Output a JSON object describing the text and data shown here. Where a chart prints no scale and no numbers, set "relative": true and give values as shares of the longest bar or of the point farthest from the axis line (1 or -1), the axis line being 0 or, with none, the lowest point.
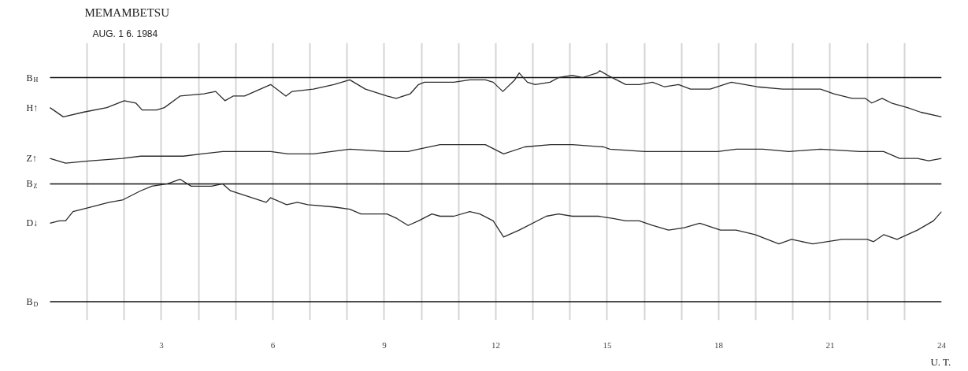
{
  "chart_data": {
    "type": "line",
    "title": "MEMAMBETSU",
    "subtitle": "AUG. 1 6. 1984",
    "xlabel": "U. T.",
    "relative": true,
    "xlim": [
      0,
      24
    ],
    "xticks": [
      {
        "value": 1,
        "label": null
      },
      {
        "value": 2,
        "label": null
      },
      3,
      {
        "value": 4,
        "label": null
      },
      {
        "value": 5,
        "label": null
      },
      6,
      {
        "value": 7,
        "label": null
      },
      {
        "value": 8,
        "label": null
      },
      9,
      {
        "value": 10,
        "label": null
      },
      {
        "value": 11,
        "label": null
      },
      12,
      {
        "value": 13,
        "label": null
      },
      {
        "value": 14,
        "label": null
      },
      15,
      {
        "value": 16,
        "label": null
      },
      {
        "value": 17,
        "label": null
      },
      18,
      {
        "value": 19,
        "label": null
      },
      {
        "value": 20,
        "label": null
      },
      21,
      {
        "value": 22,
        "label": null
      },
      {
        "value": 23,
        "label": null
      },
      24
    ],
    "grid": "x",
    "ref_lines": [
      {
        "axis": "y",
        "value": 0.97,
        "label": "B$_{H}$",
        "color": "#111111"
      },
      {
        "axis": "y",
        "value": 0.51,
        "label": "B$_{Z}$",
        "color": "#111111"
      },
      {
        "axis": "y",
        "value": 0,
        "label": "B$_{D}$",
        "color": "#111111"
      }
    ],
    "series": [
      {
        "name": "H↑",
        "color": "#2b2b2b",
        "x": [
          0,
          0.36,
          0.89,
          1.53,
          2.0,
          2.31,
          2.48,
          2.87,
          3.08,
          3.5,
          4.14,
          4.46,
          4.71,
          4.93,
          5.24,
          5.94,
          6.35,
          6.52,
          7.09,
          7.64,
          8.07,
          8.49,
          9.07,
          9.32,
          9.7,
          9.92,
          10.08,
          10.5,
          10.87,
          11.3,
          11.72,
          11.93,
          12.19,
          12.51,
          12.63,
          12.85,
          13.06,
          13.46,
          13.69,
          14.06,
          14.33,
          14.73,
          14.8,
          15.01,
          15.5,
          15.86,
          16.22,
          16.54,
          16.92,
          17.24,
          17.77,
          18.34,
          19.04,
          19.72,
          20.04,
          20.74,
          21.1,
          21.59,
          21.95,
          22.12,
          22.4,
          22.65,
          23.08,
          23.44,
          24
        ],
        "values": [
          0.84,
          0.8,
          0.82,
          0.84,
          0.87,
          0.86,
          0.83,
          0.83,
          0.84,
          0.89,
          0.9,
          0.91,
          0.87,
          0.89,
          0.89,
          0.94,
          0.89,
          0.91,
          0.92,
          0.94,
          0.96,
          0.92,
          0.89,
          0.88,
          0.9,
          0.94,
          0.95,
          0.95,
          0.95,
          0.96,
          0.96,
          0.95,
          0.91,
          0.96,
          0.99,
          0.95,
          0.94,
          0.95,
          0.97,
          0.98,
          0.97,
          0.99,
          1.0,
          0.98,
          0.94,
          0.94,
          0.95,
          0.93,
          0.94,
          0.92,
          0.92,
          0.95,
          0.93,
          0.92,
          0.92,
          0.92,
          0.9,
          0.88,
          0.88,
          0.86,
          0.88,
          0.86,
          0.84,
          0.82,
          0.8
        ]
      },
      {
        "name": "Z↑",
        "color": "#2b2b2b",
        "x": [
          0,
          0.42,
          1.1,
          1.95,
          2.44,
          3.59,
          4.08,
          4.65,
          4.93,
          5.94,
          6.41,
          7.09,
          8.07,
          9.07,
          9.64,
          9.92,
          10.5,
          11.3,
          11.72,
          12.21,
          12.78,
          13.48,
          14.06,
          14.9,
          15.07,
          16.01,
          17.07,
          17.98,
          18.47,
          19.19,
          19.89,
          20.74,
          21.8,
          22.17,
          22.44,
          22.87,
          23.35,
          23.65,
          24
        ],
        "values": [
          0.62,
          0.6,
          0.61,
          0.62,
          0.63,
          0.63,
          0.64,
          0.65,
          0.65,
          0.65,
          0.64,
          0.64,
          0.66,
          0.65,
          0.65,
          0.66,
          0.68,
          0.68,
          0.68,
          0.64,
          0.67,
          0.68,
          0.68,
          0.67,
          0.66,
          0.65,
          0.65,
          0.65,
          0.66,
          0.66,
          0.65,
          0.66,
          0.65,
          0.65,
          0.65,
          0.62,
          0.62,
          0.61,
          0.62
        ]
      },
      {
        "name": "D↓",
        "color": "#2b2b2b",
        "x": [
          0,
          0.25,
          0.42,
          0.62,
          1.1,
          1.59,
          1.95,
          2.44,
          2.74,
          3.16,
          3.5,
          3.8,
          4.35,
          4.65,
          4.86,
          5.82,
          5.94,
          6.37,
          6.66,
          6.94,
          7.64,
          8.07,
          8.37,
          9.07,
          9.34,
          9.64,
          9.92,
          10.28,
          10.5,
          10.87,
          11.3,
          11.57,
          11.93,
          12.21,
          12.63,
          13.36,
          13.69,
          14.06,
          14.76,
          15.16,
          15.5,
          15.86,
          16.22,
          16.65,
          17.07,
          17.49,
          18.05,
          18.47,
          18.98,
          19.62,
          19.96,
          20.53,
          21.32,
          22.0,
          22.17,
          22.44,
          22.8,
          23.35,
          23.78,
          24
        ],
        "values": [
          0.34,
          0.35,
          0.35,
          0.39,
          0.41,
          0.43,
          0.44,
          0.48,
          0.5,
          0.51,
          0.53,
          0.5,
          0.5,
          0.51,
          0.48,
          0.43,
          0.45,
          0.42,
          0.43,
          0.42,
          0.41,
          0.4,
          0.38,
          0.38,
          0.36,
          0.33,
          0.35,
          0.38,
          0.37,
          0.37,
          0.39,
          0.38,
          0.35,
          0.28,
          0.31,
          0.37,
          0.38,
          0.37,
          0.37,
          0.36,
          0.35,
          0.35,
          0.33,
          0.31,
          0.32,
          0.34,
          0.31,
          0.31,
          0.29,
          0.25,
          0.27,
          0.25,
          0.27,
          0.27,
          0.26,
          0.29,
          0.27,
          0.31,
          0.35,
          0.39
        ]
      }
    ]
  }
}
